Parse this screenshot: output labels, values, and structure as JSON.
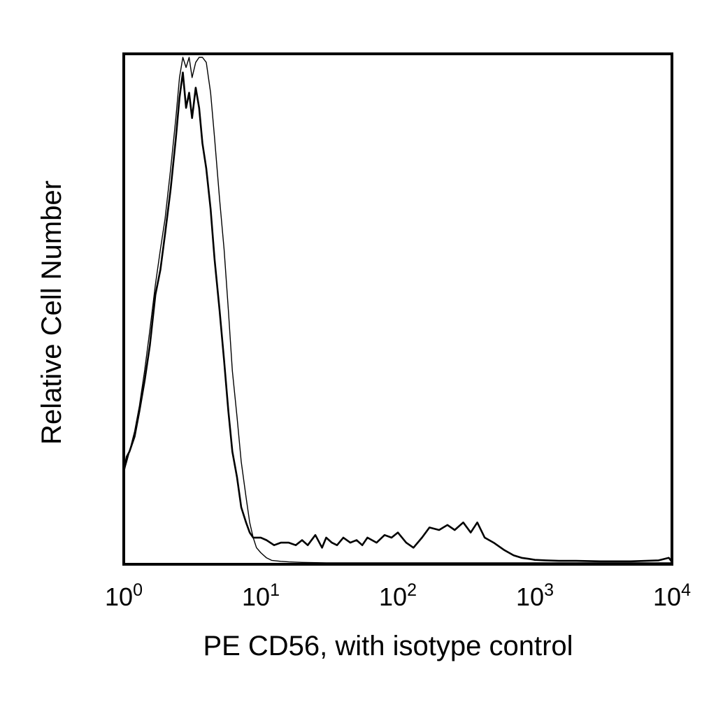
{
  "chart_data": {
    "type": "line",
    "title": "",
    "xlabel": "PE CD56, with isotype control",
    "ylabel": "Relative Cell Number",
    "x_scale": "log",
    "xlim": [
      1,
      10000
    ],
    "ylim": [
      0,
      1
    ],
    "x_ticks": [
      {
        "base": "10",
        "exp": "0",
        "value": 1
      },
      {
        "base": "10",
        "exp": "1",
        "value": 10
      },
      {
        "base": "10",
        "exp": "2",
        "value": 100
      },
      {
        "base": "10",
        "exp": "3",
        "value": 1000
      },
      {
        "base": "10",
        "exp": "4",
        "value": 10000
      }
    ],
    "grid": false,
    "legend": "none",
    "series": [
      {
        "style": "thin",
        "x": [
          1.0,
          1.05,
          1.1,
          1.2,
          1.3,
          1.42,
          1.55,
          1.7,
          1.85,
          2.0,
          2.2,
          2.4,
          2.55,
          2.7,
          2.85,
          3.0,
          3.15,
          3.35,
          3.55,
          3.75,
          4.0,
          4.3,
          4.6,
          5.0,
          5.4,
          5.8,
          6.2,
          6.7,
          7.2,
          7.8,
          8.3,
          8.8,
          9.3,
          10.0,
          11.0,
          12.0,
          14.0,
          16.0,
          20.0,
          30.0,
          50.0,
          100.0,
          300.0,
          1000.0,
          10000.0
        ],
        "y": [
          0.18,
          0.2,
          0.22,
          0.26,
          0.31,
          0.38,
          0.46,
          0.55,
          0.62,
          0.68,
          0.78,
          0.88,
          0.96,
          1.0,
          0.98,
          1.0,
          0.96,
          0.99,
          1.0,
          1.0,
          0.99,
          0.93,
          0.84,
          0.72,
          0.62,
          0.5,
          0.38,
          0.29,
          0.2,
          0.13,
          0.08,
          0.05,
          0.03,
          0.02,
          0.01,
          0.005,
          0.003,
          0.002,
          0.001,
          0.0,
          0.0,
          0.0,
          0.0,
          0.0,
          0.0
        ]
      },
      {
        "style": "thick",
        "x": [
          1.0,
          1.05,
          1.1,
          1.2,
          1.3,
          1.42,
          1.55,
          1.7,
          1.85,
          2.0,
          2.2,
          2.4,
          2.55,
          2.7,
          2.85,
          3.0,
          3.15,
          3.35,
          3.55,
          3.75,
          4.0,
          4.3,
          4.6,
          5.0,
          5.4,
          5.8,
          6.2,
          6.7,
          7.2,
          7.8,
          8.3,
          8.8,
          9.3,
          10.0,
          11.0,
          12.5,
          14.0,
          16.0,
          18.0,
          20.0,
          22.0,
          25.0,
          28.0,
          30.0,
          33.0,
          36.0,
          40.0,
          45.0,
          50.0,
          55.0,
          60.0,
          70.0,
          80.0,
          90.0,
          100.0,
          115.0,
          130.0,
          150.0,
          170.0,
          200.0,
          230.0,
          260.0,
          300.0,
          340.0,
          380.0,
          430.0,
          500.0,
          600.0,
          700.0,
          800.0,
          900.0,
          1000.0,
          1200.0,
          1500.0,
          2000.0,
          3000.0,
          5000.0,
          8000.0,
          9500.0,
          10000.0
        ],
        "y": [
          0.18,
          0.21,
          0.22,
          0.25,
          0.3,
          0.36,
          0.43,
          0.53,
          0.58,
          0.65,
          0.74,
          0.84,
          0.92,
          0.97,
          0.9,
          0.93,
          0.88,
          0.94,
          0.9,
          0.83,
          0.78,
          0.7,
          0.6,
          0.5,
          0.4,
          0.3,
          0.22,
          0.17,
          0.11,
          0.08,
          0.06,
          0.05,
          0.05,
          0.05,
          0.045,
          0.035,
          0.04,
          0.04,
          0.035,
          0.045,
          0.035,
          0.055,
          0.03,
          0.05,
          0.04,
          0.035,
          0.05,
          0.04,
          0.045,
          0.035,
          0.05,
          0.04,
          0.055,
          0.05,
          0.06,
          0.04,
          0.03,
          0.05,
          0.07,
          0.065,
          0.075,
          0.065,
          0.08,
          0.06,
          0.08,
          0.05,
          0.04,
          0.025,
          0.015,
          0.01,
          0.008,
          0.006,
          0.005,
          0.004,
          0.004,
          0.003,
          0.003,
          0.005,
          0.01,
          0.002
        ]
      }
    ]
  }
}
